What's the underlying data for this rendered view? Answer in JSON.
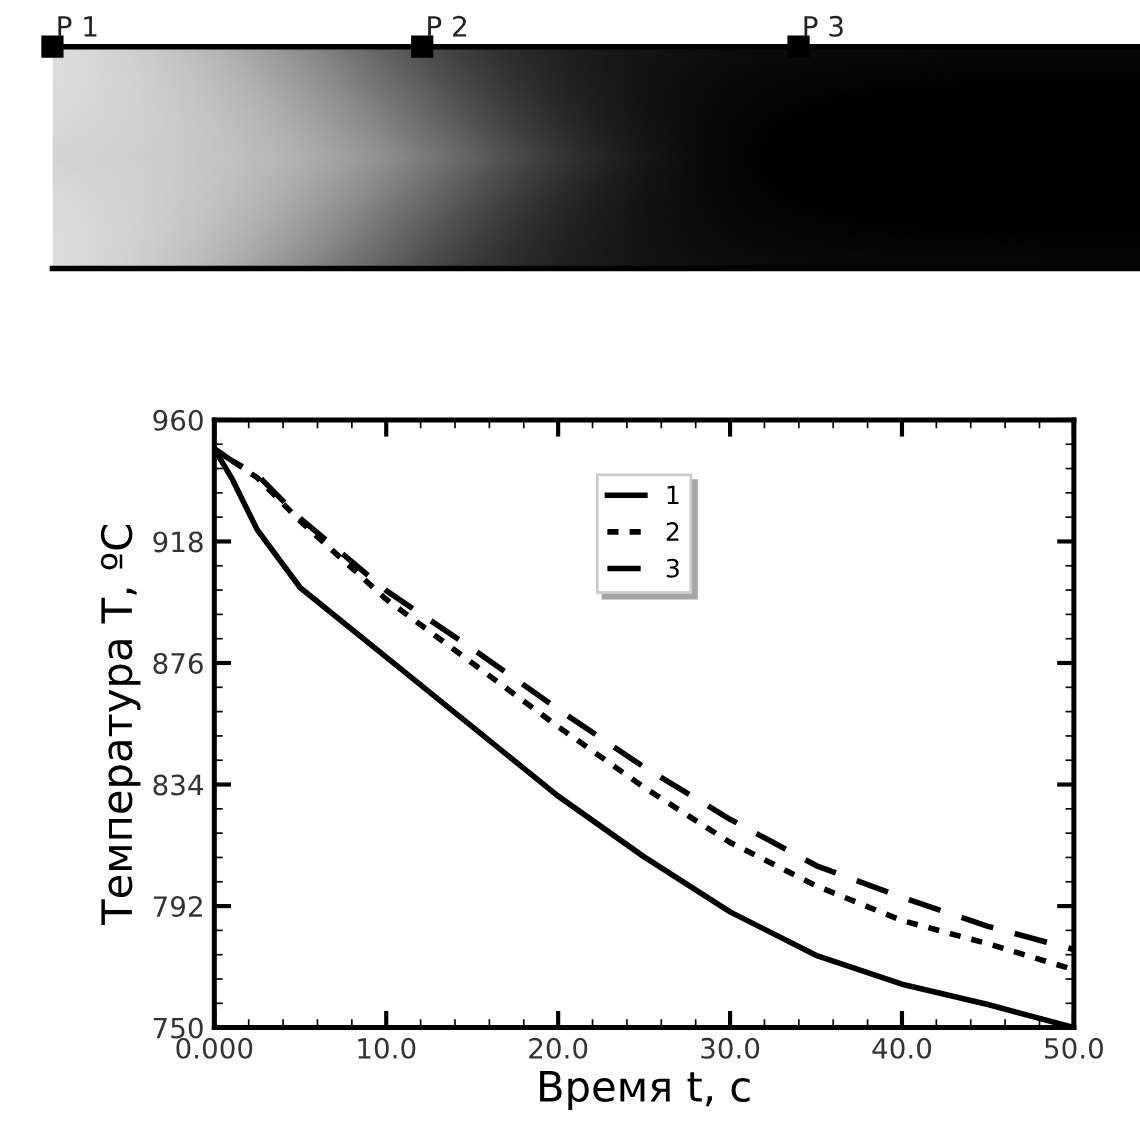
{
  "chart_data": {
    "type": "line",
    "xlabel": "Время t, с",
    "ylabel": "Температура T, ºC",
    "x": [
      0,
      1,
      2.5,
      5,
      10,
      15,
      20,
      25,
      30,
      35,
      40,
      45,
      50
    ],
    "series": [
      {
        "name": "1",
        "color": "#000000",
        "line_style": "solid",
        "values": [
          950,
          940,
          922,
          902,
          878,
          854,
          830,
          809,
          790,
          775,
          765,
          758,
          750
        ]
      },
      {
        "name": "2",
        "color": "#000000",
        "line_style": "dotted",
        "values": [
          950,
          946,
          940,
          925,
          898,
          876,
          854,
          833,
          814,
          799,
          787,
          779,
          770
        ]
      },
      {
        "name": "3",
        "color": "#000000",
        "line_style": "dashed",
        "values": [
          950,
          946,
          941,
          926,
          901,
          881,
          860,
          840,
          822,
          806,
          795,
          785,
          777
        ]
      }
    ],
    "xlim": [
      0,
      50
    ],
    "ylim": [
      750,
      960
    ],
    "xticks": [
      {
        "value": 0,
        "label": "0.000"
      },
      {
        "value": 10,
        "label": "10.0"
      },
      {
        "value": 20,
        "label": "20.0"
      },
      {
        "value": 30,
        "label": "30.0"
      },
      {
        "value": 40,
        "label": "40.0"
      },
      {
        "value": 50,
        "label": "50.0"
      }
    ],
    "yticks": [
      750,
      792,
      834,
      876,
      918,
      960
    ],
    "legend": "top",
    "grid": false,
    "annotations": [
      "P 1",
      "P 2",
      "P 3"
    ]
  }
}
